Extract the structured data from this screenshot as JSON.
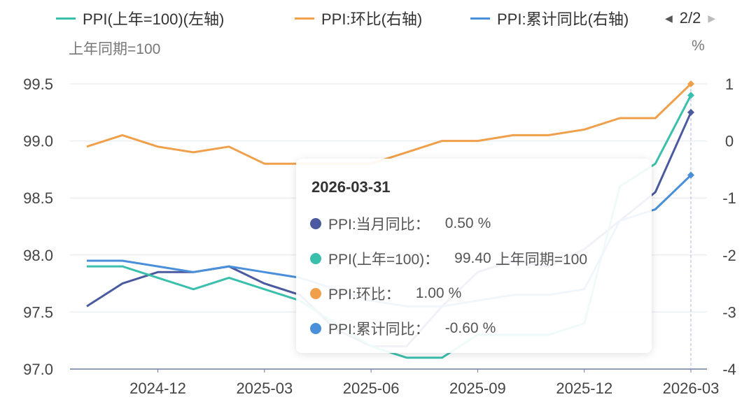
{
  "legend": {
    "items": [
      {
        "label": "PPI(上年=100)(左轴)",
        "color": "#3bbfad"
      },
      {
        "label": "PPI:环比(右轴)",
        "color": "#f0a04b"
      },
      {
        "label": "PPI:累计同比(右轴)",
        "color": "#4a8fd9"
      }
    ],
    "page": "2/2",
    "prev_icon": "triangle-left-icon",
    "next_icon": "triangle-right-icon"
  },
  "chart_data": {
    "type": "line",
    "left_axis_title": "上年同期=100",
    "right_axis_title": "%",
    "x": [
      "2024-10",
      "2024-11",
      "2024-12",
      "2025-01",
      "2025-02",
      "2025-03",
      "2025-04",
      "2025-05",
      "2025-06",
      "2025-07",
      "2025-08",
      "2025-09",
      "2025-10",
      "2025-11",
      "2025-12",
      "2026-01",
      "2026-02",
      "2026-03"
    ],
    "x_tick_labels": [
      "2024-12",
      "2025-03",
      "2025-06",
      "2025-09",
      "2025-12",
      "2026-03"
    ],
    "left_ylim": [
      97.0,
      99.5
    ],
    "left_ticks": [
      "99.5",
      "99.0",
      "98.5",
      "98.0",
      "97.5",
      "97.0"
    ],
    "right_ylim": [
      -4,
      1
    ],
    "right_ticks": [
      "1",
      "0",
      "-1",
      "-2",
      "-3",
      "-4"
    ],
    "grid": true,
    "legend_position": "top",
    "series": [
      {
        "name": "PPI:当月同比",
        "axis": "right",
        "color": "#4b5aa0",
        "values": [
          -2.9,
          -2.5,
          -2.3,
          -2.3,
          -2.2,
          -2.5,
          -2.7,
          -3.3,
          -3.6,
          -3.6,
          -2.9,
          -2.3,
          -2.1,
          -2.2,
          -1.9,
          -1.4,
          -0.9,
          0.5
        ]
      },
      {
        "name": "PPI(上年=100)",
        "axis": "left",
        "color": "#3bbfad",
        "values": [
          97.9,
          97.9,
          97.8,
          97.7,
          97.8,
          97.7,
          97.6,
          97.4,
          97.2,
          97.1,
          97.1,
          97.3,
          97.3,
          97.3,
          97.4,
          98.6,
          98.8,
          99.4
        ]
      },
      {
        "name": "PPI:环比",
        "axis": "right",
        "color": "#f0a04b",
        "values": [
          -0.1,
          0.1,
          -0.1,
          -0.2,
          -0.1,
          -0.4,
          -0.4,
          -0.4,
          -0.4,
          -0.2,
          0.0,
          0.0,
          0.1,
          0.1,
          0.2,
          0.4,
          0.4,
          1.0
        ]
      },
      {
        "name": "PPI:累计同比",
        "axis": "right",
        "color": "#4a8fd9",
        "values": [
          -2.1,
          -2.1,
          -2.2,
          -2.3,
          -2.2,
          -2.3,
          -2.4,
          -2.6,
          -2.8,
          -2.9,
          -2.9,
          -2.8,
          -2.7,
          -2.7,
          -2.6,
          -1.4,
          -1.2,
          -0.6
        ]
      }
    ]
  },
  "tooltip": {
    "date": "2026-03-31",
    "rows": [
      {
        "label": "PPI:当月同比：",
        "value": "0.50",
        "unit": "%",
        "color": "#4b5aa0"
      },
      {
        "label": "PPI(上年=100)：",
        "value": "99.40",
        "unit": "上年同期=100",
        "color": "#3bbfad"
      },
      {
        "label": "PPI:环比：",
        "value": "1.00",
        "unit": "%",
        "color": "#f0a04b"
      },
      {
        "label": "PPI:累计同比：",
        "value": "-0.60",
        "unit": "%",
        "color": "#4a8fd9"
      }
    ]
  }
}
